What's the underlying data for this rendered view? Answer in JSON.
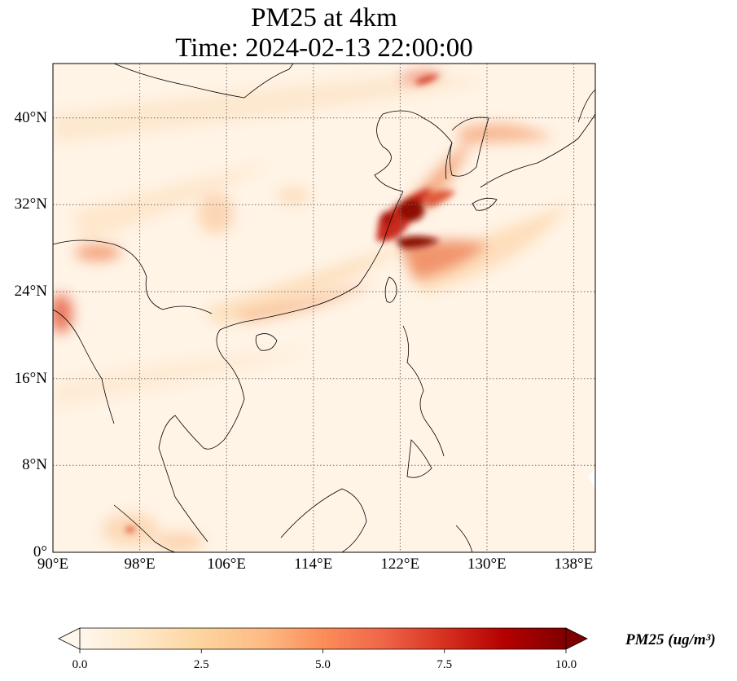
{
  "title": {
    "line1": "PM25 at 4km",
    "line2": "Time: 2024-02-13 22:00:00"
  },
  "map": {
    "projection": "PlateCarree",
    "lon_range": [
      90,
      140
    ],
    "lat_range": [
      0,
      45
    ],
    "gridlines": true,
    "gridline_style": "dotted",
    "lat_ticks": [
      {
        "value": 0,
        "label": "0°"
      },
      {
        "value": 8,
        "label": "8°N"
      },
      {
        "value": 16,
        "label": "16°N"
      },
      {
        "value": 24,
        "label": "24°N"
      },
      {
        "value": 32,
        "label": "32°N"
      },
      {
        "value": 40,
        "label": "40°N"
      }
    ],
    "lon_ticks": [
      {
        "value": 90,
        "label": "90°E"
      },
      {
        "value": 98,
        "label": "98°E"
      },
      {
        "value": 106,
        "label": "106°E"
      },
      {
        "value": 114,
        "label": "114°E"
      },
      {
        "value": 122,
        "label": "122°E"
      },
      {
        "value": 130,
        "label": "130°E"
      },
      {
        "value": 138,
        "label": "138°E"
      }
    ]
  },
  "colorbar": {
    "label": "PM25 (ug/m³)",
    "colormap": "OrRd",
    "range": [
      0,
      10
    ],
    "extend": "both",
    "ticks": [
      {
        "value": 0,
        "label": "0.0"
      },
      {
        "value": 2.5,
        "label": "2.5"
      },
      {
        "value": 5,
        "label": "5.0"
      },
      {
        "value": 7.5,
        "label": "7.5"
      },
      {
        "value": 10,
        "label": "10.0"
      }
    ],
    "colors": [
      "#fff7ec",
      "#fee8c8",
      "#fdd49e",
      "#fdbb84",
      "#fc8d59",
      "#ef6548",
      "#d7301f",
      "#b30000",
      "#7f0000"
    ]
  }
}
